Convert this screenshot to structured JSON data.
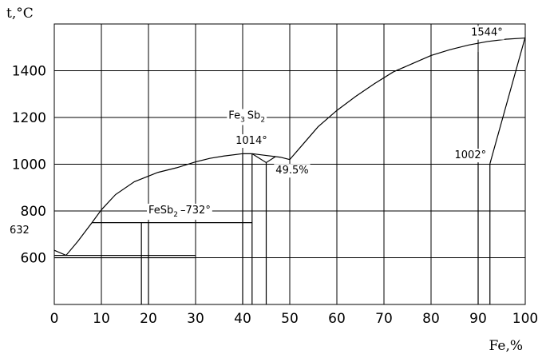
{
  "chart_data": {
    "type": "line",
    "title": "",
    "xlabel": "Fe,%",
    "ylabel": "t,°C",
    "xlim": [
      0,
      100
    ],
    "ylim": [
      400,
      1600
    ],
    "grid": true,
    "x_ticks": [
      0,
      10,
      20,
      30,
      40,
      50,
      60,
      70,
      80,
      90,
      100
    ],
    "x_tick_labels": [
      "0",
      "10",
      "20",
      "30",
      "40",
      "50",
      "60",
      "70",
      "80",
      "90",
      "100"
    ],
    "y_ticks": [
      600,
      800,
      1000,
      1200,
      1400
    ],
    "y_tick_labels": [
      "600",
      "800",
      "1000",
      "1200",
      "1400"
    ],
    "liquidus_left": {
      "x": [
        0,
        2.5,
        5,
        8,
        10,
        13,
        17,
        22,
        26,
        30,
        33,
        36,
        40,
        42
      ],
      "y": [
        632,
        610,
        670,
        750,
        805,
        870,
        925,
        965,
        985,
        1010,
        1025,
        1035,
        1045,
        1045
      ]
    },
    "liquidus_mid": {
      "x": [
        42,
        44,
        48,
        50
      ],
      "y": [
        1045,
        1040,
        1030,
        1020
      ]
    },
    "liquidus_right": {
      "x": [
        50,
        53,
        56,
        60,
        64,
        68,
        72,
        76,
        80,
        84,
        88,
        92,
        96,
        100
      ],
      "y": [
        1020,
        1090,
        1160,
        1230,
        1290,
        1345,
        1395,
        1430,
        1465,
        1490,
        1510,
        1525,
        1535,
        1540
      ]
    },
    "solvus_right": {
      "x": [
        92.5,
        100
      ],
      "y": [
        1002,
        1544
      ]
    },
    "eutectic_vee": {
      "x": [
        42,
        45,
        47
      ],
      "y": [
        1045,
        1007,
        1033
      ]
    },
    "vertical_lines": [
      {
        "x": 18.5,
        "y0": 400,
        "y1": 750
      },
      {
        "x": 20,
        "y0": 400,
        "y1": 750
      },
      {
        "x": 40,
        "y0": 400,
        "y1": 1045
      },
      {
        "x": 42,
        "y0": 400,
        "y1": 1045
      },
      {
        "x": 45,
        "y0": 400,
        "y1": 1007
      },
      {
        "x": 90,
        "y0": 400,
        "y1": 1480
      },
      {
        "x": 92.5,
        "y0": 400,
        "y1": 1002
      }
    ],
    "horizontal_lines": [
      {
        "y": 610,
        "x0": 0,
        "x1": 30
      },
      {
        "y": 600,
        "x0": 0,
        "x1": 30
      },
      {
        "y": 750,
        "x0": 8,
        "x1": 42
      }
    ],
    "annotations": [
      {
        "text": "632",
        "x": -9.5,
        "y": 705
      },
      {
        "text": "1014°",
        "x": 38.5,
        "y": 1087
      },
      {
        "text": "49.5%",
        "x": 47,
        "y": 960
      },
      {
        "text": "1002°",
        "x": 85,
        "y": 1025
      },
      {
        "text": "1544°",
        "x": 88.5,
        "y": 1550
      },
      {
        "text": "FeSb",
        "sub": "2",
        "after": "–732°",
        "x": 20,
        "y": 790
      },
      {
        "text": "Fe",
        "sub": "3",
        "after": "Sb",
        "sub2": "2",
        "x": 37,
        "y": 1195
      }
    ]
  }
}
